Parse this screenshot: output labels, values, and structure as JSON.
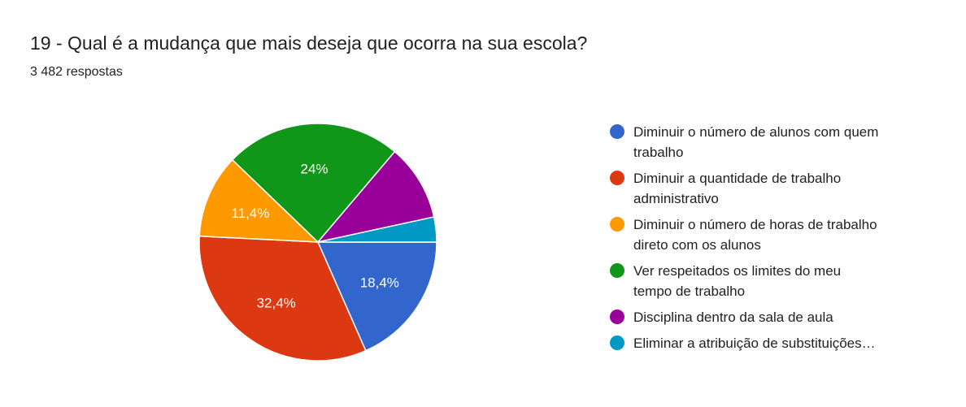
{
  "header": {
    "title": "19 - Qual é a mudança que mais deseja que ocorra na sua escola?",
    "responses": "3 482 respostas"
  },
  "chart_data": {
    "type": "pie",
    "slices": [
      {
        "label": "Diminuir o número de alunos com quem trabalho",
        "legend_lines": [
          "Diminuir o número de alunos com quem",
          "trabalho"
        ],
        "value": 18.4,
        "display": "18,4%",
        "color": "#3366cc"
      },
      {
        "label": "Diminuir a quantidade de trabalho administrativo",
        "legend_lines": [
          "Diminuir a quantidade de trabalho",
          "administrativo"
        ],
        "value": 32.4,
        "display": "32,4%",
        "color": "#dc3912"
      },
      {
        "label": "Diminuir o número de horas de trabalho direto com os alunos",
        "legend_lines": [
          "Diminuir o número de horas de trabalho",
          "direto com os alunos"
        ],
        "value": 11.4,
        "display": "11,4%",
        "color": "#ff9900"
      },
      {
        "label": "Ver respeitados os limites do meu tempo de trabalho",
        "legend_lines": [
          "Ver respeitados os limites do meu",
          "tempo de trabalho"
        ],
        "value": 24.0,
        "display": "24%",
        "color": "#109618"
      },
      {
        "label": "Disciplina dentro da sala de aula",
        "legend_lines": [
          "Disciplina dentro da sala de aula"
        ],
        "value": 10.4,
        "display": "",
        "color": "#990099"
      },
      {
        "label": "Eliminar a atribuição de substituições…",
        "legend_lines": [
          "Eliminar a atribuição de substituições…"
        ],
        "value": 3.4,
        "display": "",
        "color": "#0099c6"
      }
    ],
    "start_angle": "3 o'clock",
    "direction": "clockwise",
    "legend_position": "right"
  }
}
